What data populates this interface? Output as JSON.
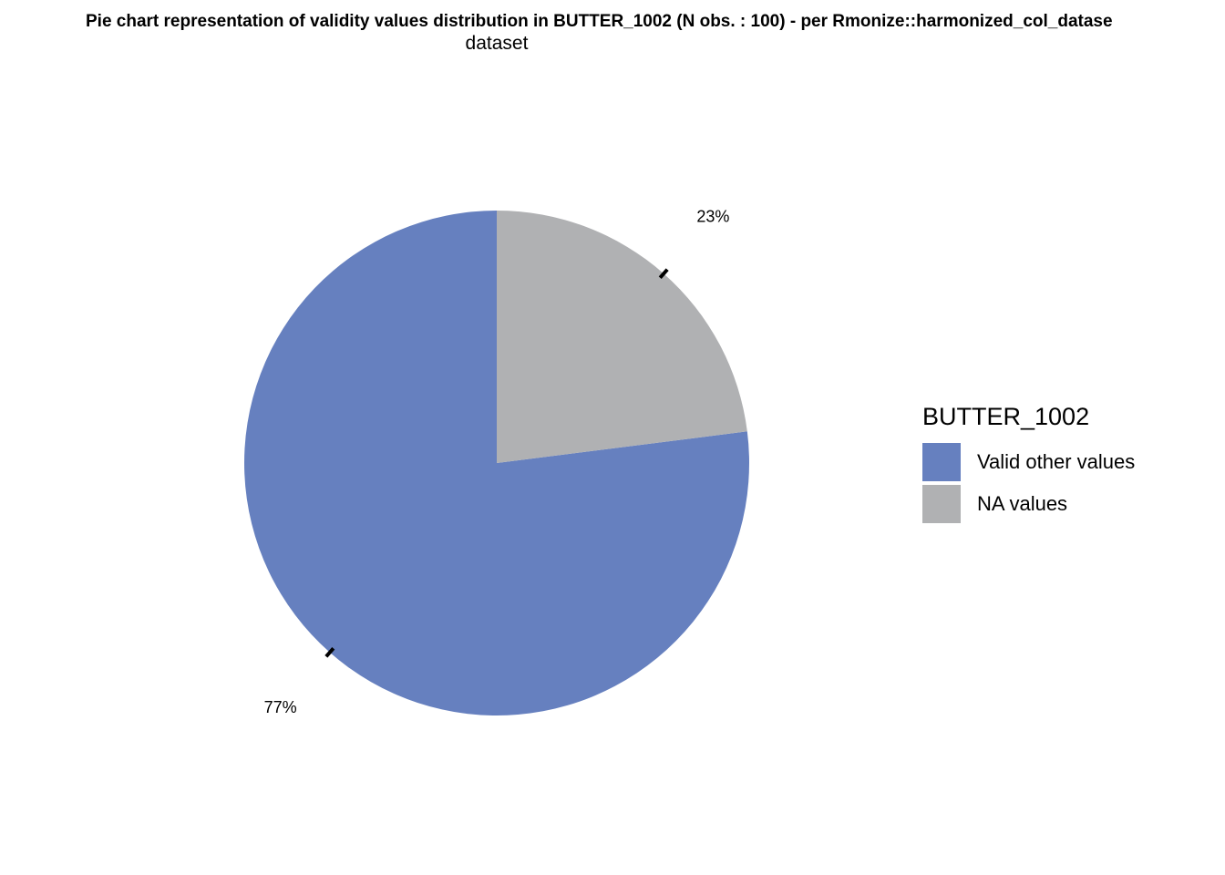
{
  "chart_data": {
    "type": "pie",
    "title": "Pie chart representation of validity values distribution in BUTTER_1002 (N obs. : 100) - per Rmonize::harmonized_col_datase",
    "subtitle": "dataset",
    "slices": [
      {
        "label": "Valid other values",
        "value": 77,
        "percent_label": "77%",
        "color": "#6680BF"
      },
      {
        "label": "NA values",
        "value": 23,
        "percent_label": "23%",
        "color": "#B0B1B3"
      }
    ],
    "legend": {
      "title": "BUTTER_1002",
      "placement": "right"
    }
  }
}
